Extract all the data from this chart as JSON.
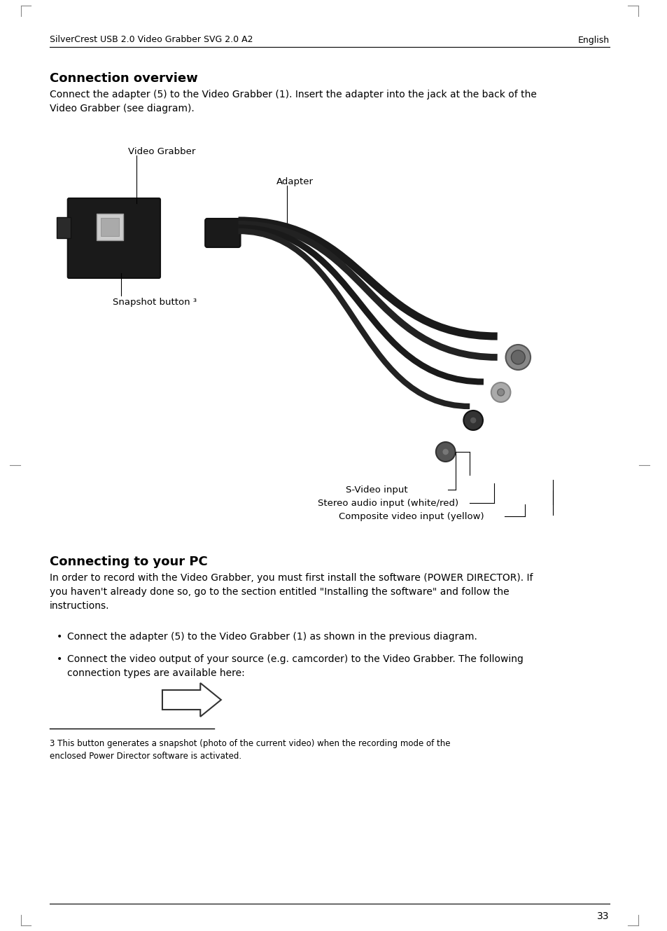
{
  "page_bg": "#ffffff",
  "header_left": "SilverCrest USB 2.0 Video Grabber SVG 2.0 A2",
  "header_right": "English",
  "header_fontsize": 9,
  "section1_title": "Connection overview",
  "section1_title_fontsize": 13,
  "section1_body": "Connect the adapter (5) to the Video Grabber (1). Insert the adapter into the jack at the back of the\nVideo Grabber (see diagram).",
  "section1_body_fontsize": 10,
  "label_video_grabber": "Video Grabber",
  "label_adapter": "Adapter",
  "label_snapshot": "Snapshot button ³",
  "label_svideo": "S-Video input",
  "label_stereo": "Stereo audio input (white/red)",
  "label_composite": "Composite video input (yellow)",
  "section2_title": "Connecting to your PC",
  "section2_title_fontsize": 13,
  "section2_body": "In order to record with the Video Grabber, you must first install the software (POWER DIRECTOR). If\nyou haven't already done so, go to the section entitled \"Installing the software\" and follow the\ninstructions.",
  "section2_body_fontsize": 10,
  "bullet1": "Connect the adapter (5) to the Video Grabber (1) as shown in the previous diagram.",
  "bullet2": "Connect the video output of your source (e.g. camcorder) to the Video Grabber. The following\nconnection types are available here:",
  "footnote_line": "3 This button generates a snapshot (photo of the current video) when the recording mode of the\nenclosed Power Director software is activated.",
  "footnote_fontsize": 8.5,
  "page_number": "33",
  "text_color": "#000000",
  "label_fontsize": 9.5,
  "bullet_fontsize": 10
}
